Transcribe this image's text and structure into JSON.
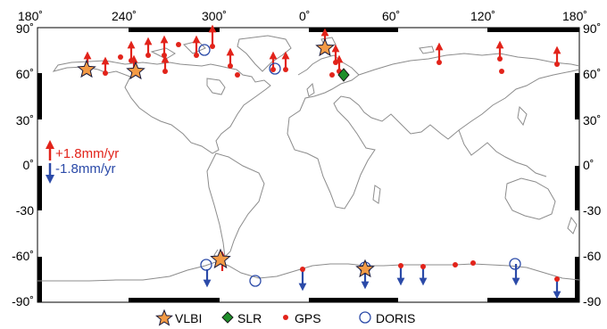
{
  "map": {
    "lon_ticks": [
      "180˚",
      "240˚",
      "300˚",
      "0˚",
      "60˚",
      "120˚",
      "180˚"
    ],
    "lat_ticks_left": [
      "90˚",
      "60˚",
      "30˚",
      "0˚",
      "-30",
      "-60˚",
      "-90˚"
    ],
    "lat_ticks_right": [
      "90˚",
      "60˚",
      "30˚",
      "0˚",
      "-30",
      "-60",
      "-90"
    ],
    "rate_up": "+1.8mm/yr",
    "rate_down": "-1.8mm/yr",
    "colors": {
      "up": "#e2231a",
      "down": "#2b4aa8",
      "vlbi": "#f39a45",
      "slr": "#1f8f2a",
      "coast": "#8c8c8c"
    }
  },
  "legend": [
    {
      "label": "VLBI",
      "symbol": "star"
    },
    {
      "label": "SLR",
      "symbol": "diamond"
    },
    {
      "label": "GPS",
      "symbol": "dot"
    },
    {
      "label": "DORIS",
      "symbol": "circle"
    }
  ]
}
